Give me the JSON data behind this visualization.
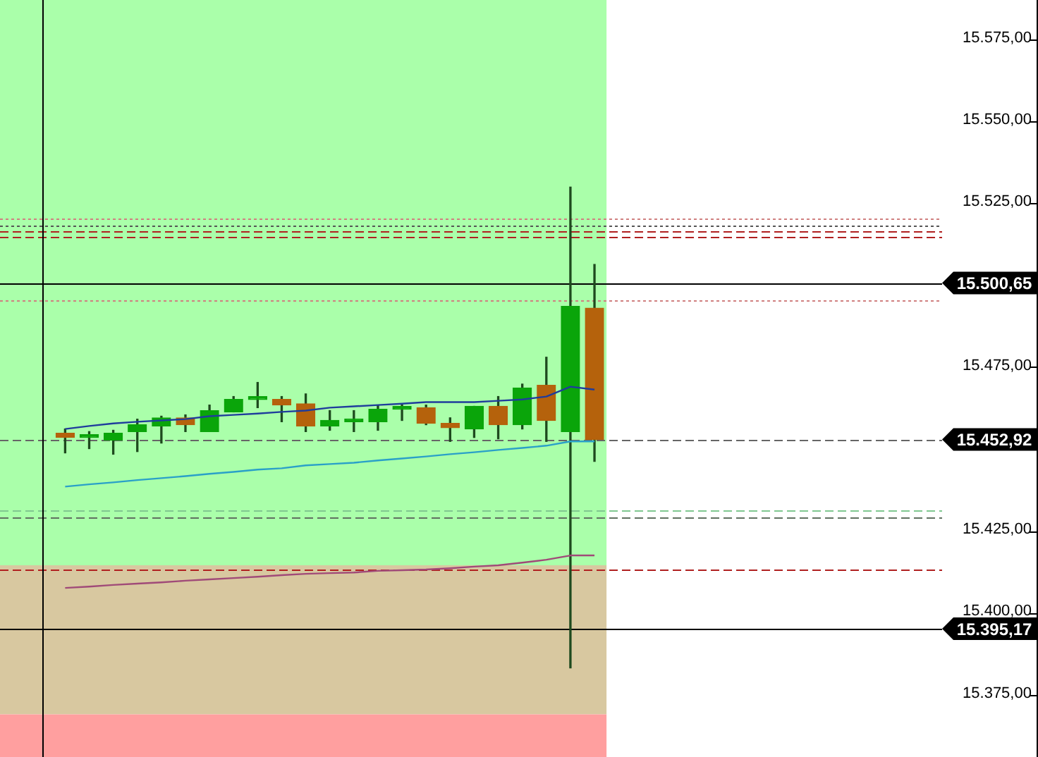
{
  "chart_data": {
    "type": "candlestick",
    "categories": [
      null,
      null,
      null,
      null,
      null,
      null,
      null,
      null,
      null,
      null,
      null,
      null,
      null,
      null,
      null,
      null,
      null,
      null,
      null,
      null,
      null,
      null,
      null
    ],
    "ohlc": [
      [
        15454.8,
        15456.1,
        15448.8,
        15453.5
      ],
      [
        15453.5,
        15455.3,
        15450.1,
        15453.5
      ],
      [
        15452.7,
        15455.7,
        15448.4,
        15454.8
      ],
      [
        15455.3,
        15459.1,
        15449.2,
        15457.4
      ],
      [
        15457.0,
        15460.0,
        15451.8,
        15459.5
      ],
      [
        15459.5,
        15460.4,
        15455.3,
        15457.4
      ],
      [
        15455.3,
        15463.4,
        15455.3,
        15461.7
      ],
      [
        15461.3,
        15466.0,
        15461.3,
        15465.1
      ],
      [
        15465.1,
        15470.3,
        15462.6,
        15465.1
      ],
      [
        15465.1,
        15466.0,
        15458.3,
        15463.4
      ],
      [
        15463.8,
        15466.8,
        15455.3,
        15457.0
      ],
      [
        15457.0,
        15461.7,
        15455.7,
        15458.7
      ],
      [
        15458.3,
        15461.7,
        15455.3,
        15458.3
      ],
      [
        15458.3,
        15463.4,
        15455.7,
        15462.1
      ],
      [
        15462.1,
        15463.4,
        15458.7,
        15462.6
      ],
      [
        15462.6,
        15463.4,
        15457.4,
        15457.8
      ],
      [
        15457.8,
        15459.5,
        15452.3,
        15456.5
      ],
      [
        15456.1,
        15463.0,
        15453.5,
        15463.0
      ],
      [
        15463.0,
        15466.0,
        15453.1,
        15457.4
      ],
      [
        15457.4,
        15469.8,
        15456.1,
        15468.6
      ],
      [
        15469.4,
        15478.0,
        15452.3,
        15458.7
      ],
      [
        15455.3,
        15529.9,
        15383.2,
        15493.5
      ],
      [
        15493.0,
        15506.3,
        15446.2,
        15452.9
      ]
    ],
    "colors": [
      "#b5620c",
      "#0aa50a",
      "#0aa50a",
      "#0aa50a",
      "#0aa50a",
      "#b5620c",
      "#0aa50a",
      "#0aa50a",
      "#0aa50a",
      "#b5620c",
      "#b5620c",
      "#0aa50a",
      "#0aa50a",
      "#0aa50a",
      "#0aa50a",
      "#b5620c",
      "#b5620c",
      "#0aa50a",
      "#b5620c",
      "#0aa50a",
      "#b5620c",
      "#0aa50a",
      "#b5620c"
    ],
    "series": [
      {
        "type": "line",
        "color": "#1f3c9c",
        "values": [
          15456.1,
          15457.0,
          15457.8,
          15458.3,
          15458.7,
          15459.1,
          15460.0,
          15460.4,
          15460.8,
          15461.3,
          15461.7,
          15462.6,
          15463.0,
          15463.4,
          15463.8,
          15464.3,
          15464.3,
          15464.3,
          15464.7,
          15465.1,
          15466.0,
          15469.0,
          15468.1
        ]
      },
      {
        "type": "line",
        "color": "#2aa0c8",
        "values": [
          15438.5,
          15439.2,
          15439.8,
          15440.5,
          15441.1,
          15441.7,
          15442.4,
          15443.0,
          15443.7,
          15444.1,
          15445.0,
          15445.4,
          15445.8,
          15446.5,
          15447.1,
          15447.7,
          15448.4,
          15449.0,
          15449.7,
          15450.3,
          15451.0,
          15452.3,
          15452.3
        ]
      },
      {
        "type": "line",
        "color": "#a04a78",
        "values": [
          15407.6,
          15408.0,
          15408.5,
          15408.9,
          15409.3,
          15409.8,
          15410.2,
          15410.6,
          15411.0,
          15411.5,
          15411.9,
          15412.1,
          15412.3,
          15412.8,
          15413.0,
          15413.2,
          15413.6,
          15414.1,
          15414.5,
          15415.3,
          15416.2,
          15417.5,
          15417.5
        ]
      }
    ],
    "ref_lines": [
      {
        "axis": "y",
        "value": 15500.65,
        "label": "15.500,65",
        "color": "#000000",
        "line_style": "solid"
      },
      {
        "axis": "y",
        "value": 15452.92,
        "label": "15.452,92",
        "color": "#666666",
        "line_style": "dashed"
      },
      {
        "axis": "y",
        "value": 15395.17,
        "label": "15.395,17",
        "color": "#000000",
        "line_style": "solid"
      },
      {
        "axis": "y",
        "value": 15520.5,
        "color": "#d08080",
        "line_style": "dotted"
      },
      {
        "axis": "y",
        "value": 15518.3,
        "color": "#555555",
        "line_style": "dotted"
      },
      {
        "axis": "y",
        "value": 15516.6,
        "color": "#b02020",
        "line_style": "dashed"
      },
      {
        "axis": "y",
        "value": 15514.9,
        "color": "#b02020",
        "line_style": "dashed"
      },
      {
        "axis": "y",
        "value": 15495.2,
        "color": "#d08080",
        "line_style": "dotted"
      },
      {
        "axis": "y",
        "value": 15431.2,
        "color": "#80c890",
        "line_style": "dashed"
      },
      {
        "axis": "y",
        "value": 15429.1,
        "color": "#607060",
        "line_style": "dashed"
      },
      {
        "axis": "y",
        "value": 15413.2,
        "color": "#b02020",
        "line_style": "dashed"
      }
    ],
    "bands": [
      {
        "axis": "y",
        "from": 15414.5,
        "to": 15587,
        "color": "#aaffaa"
      },
      {
        "axis": "y",
        "from": 15369,
        "to": 15414.5,
        "color": "#d8c8a0"
      },
      {
        "axis": "y",
        "from": 15356,
        "to": 15369,
        "color": "#ff9f9f"
      }
    ],
    "ylim": [
      15356,
      15587
    ],
    "yticks": [
      {
        "value": 15575,
        "label": "15.575,00"
      },
      {
        "value": 15550,
        "label": "15.550,00"
      },
      {
        "value": 15525,
        "label": "15.525,00"
      },
      {
        "value": 15475,
        "label": "15.475,00"
      },
      {
        "value": 15425,
        "label": "15.425,00"
      },
      {
        "value": 15400,
        "label": "15.400,00"
      },
      {
        "value": 15375,
        "label": "15.375,00"
      }
    ],
    "tick_labels": "y",
    "grid": false,
    "legend": false
  }
}
